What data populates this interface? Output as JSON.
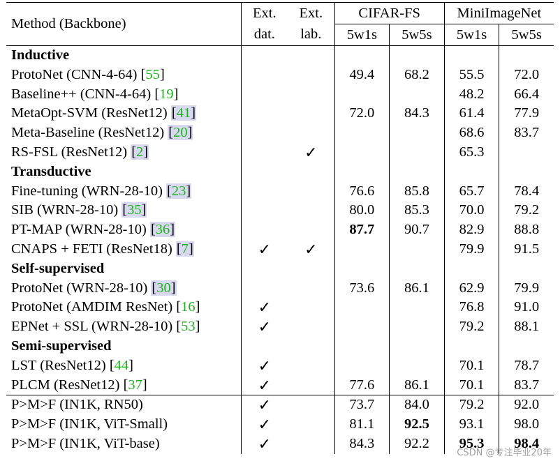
{
  "header": {
    "method": "Method (Backbone)",
    "ext_dat": [
      "Ext.",
      "dat."
    ],
    "ext_lab": [
      "Ext.",
      "lab."
    ],
    "cifar": "CIFAR-FS",
    "mini": "MiniImageNet",
    "sub": [
      "5w1s",
      "5w5s",
      "5w1s",
      "5w5s"
    ]
  },
  "sections": [
    {
      "title": "Inductive",
      "rows": [
        {
          "method": "ProtoNet (CNN-4-64)",
          "ref": "55",
          "boxed": false,
          "dat": "",
          "lab": "",
          "c1": "49.4",
          "c5": "68.2",
          "m1": "55.5",
          "m5": "72.0"
        },
        {
          "method": "Baseline++ (CNN-4-64)",
          "ref": "19",
          "boxed": false,
          "dat": "",
          "lab": "",
          "c1": "",
          "c5": "",
          "m1": "48.2",
          "m5": "66.4"
        },
        {
          "method": "MetaOpt-SVM (ResNet12)",
          "ref": "41",
          "boxed": true,
          "dat": "",
          "lab": "",
          "c1": "72.0",
          "c5": "84.3",
          "m1": "61.4",
          "m5": "77.9"
        },
        {
          "method": "Meta-Baseline (ResNet12)",
          "ref": "20",
          "boxed": true,
          "dat": "",
          "lab": "",
          "c1": "",
          "c5": "",
          "m1": "68.6",
          "m5": "83.7"
        },
        {
          "method": "RS-FSL (ResNet12)",
          "ref": "2",
          "boxed": true,
          "dat": "",
          "lab": "✓",
          "c1": "",
          "c5": "",
          "m1": "65.3",
          "m5": ""
        }
      ]
    },
    {
      "title": "Transductive",
      "rows": [
        {
          "method": "Fine-tuning (WRN-28-10)",
          "ref": "23",
          "boxed": true,
          "dat": "",
          "lab": "",
          "c1": "76.6",
          "c5": "85.8",
          "m1": "65.7",
          "m5": "78.4"
        },
        {
          "method": "SIB (WRN-28-10)",
          "ref": "35",
          "boxed": true,
          "dat": "",
          "lab": "",
          "c1": "80.0",
          "c5": "85.3",
          "m1": "70.0",
          "m5": "79.2"
        },
        {
          "method": "PT-MAP (WRN-28-10)",
          "ref": "36",
          "boxed": true,
          "dat": "",
          "lab": "",
          "c1": "87.7",
          "c1_bold": true,
          "c5": "90.7",
          "m1": "82.9",
          "m5": "88.8"
        },
        {
          "method": "CNAPS + FETI (ResNet18)",
          "ref": "7",
          "boxed": true,
          "dat": "✓",
          "lab": "✓",
          "c1": "",
          "c5": "",
          "m1": "79.9",
          "m5": "91.5"
        }
      ]
    },
    {
      "title": "Self-supervised",
      "rows": [
        {
          "method": "ProtoNet (WRN-28-10)",
          "ref": "30",
          "boxed": true,
          "dat": "",
          "lab": "",
          "c1": "73.6",
          "c5": "86.1",
          "m1": "62.9",
          "m5": "79.9"
        },
        {
          "method": "ProtoNet (AMDIM ResNet)",
          "ref": "16",
          "boxed": false,
          "dat": "✓",
          "lab": "",
          "c1": "",
          "c5": "",
          "m1": "76.8",
          "m5": "91.0"
        },
        {
          "method": "EPNet + SSL (WRN-28-10)",
          "ref": "53",
          "boxed": false,
          "dat": "✓",
          "lab": "",
          "c1": "",
          "c5": "",
          "m1": "79.2",
          "m5": "88.1"
        }
      ]
    },
    {
      "title": "Semi-supervised",
      "rows": [
        {
          "method": "LST (ResNet12)",
          "ref": "44",
          "boxed": false,
          "dat": "✓",
          "lab": "",
          "c1": "",
          "c5": "",
          "m1": "70.1",
          "m5": "78.7"
        },
        {
          "method": "PLCM (ResNet12)",
          "ref": "37",
          "boxed": false,
          "dat": "✓",
          "lab": "",
          "c1": "77.6",
          "c5": "86.1",
          "m1": "70.1",
          "m5": "83.7"
        }
      ]
    }
  ],
  "ours": [
    {
      "method": "P>M>F (IN1K, RN50)",
      "dat": "✓",
      "lab": "",
      "c1": "73.7",
      "c5": "84.0",
      "m1": "79.2",
      "m5": "92.0"
    },
    {
      "method": "P>M>F (IN1K, ViT-Small)",
      "dat": "✓",
      "lab": "",
      "c1": "81.1",
      "c5": "92.5",
      "c5_bold": true,
      "m1": "93.1",
      "m5": "98.0"
    },
    {
      "method": "P>M>F (IN1K, ViT-base)",
      "dat": "✓",
      "lab": "",
      "c1": "84.3",
      "c5": "92.2",
      "m1": "95.3",
      "m1_bold": true,
      "m5": "98.4",
      "m5_bold": true
    }
  ],
  "watermark": "CSDN @专注毕业20年"
}
